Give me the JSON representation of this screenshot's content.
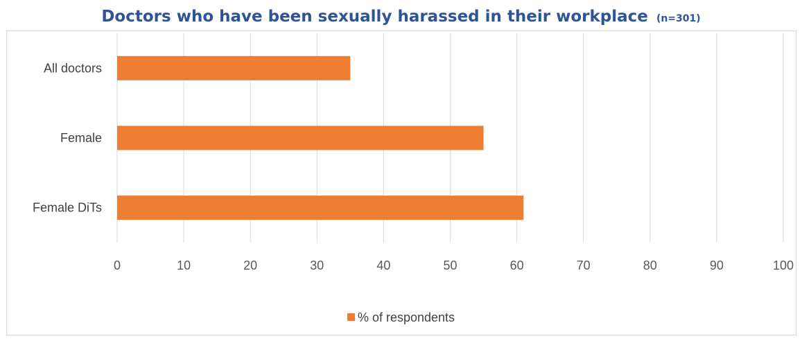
{
  "chart_data": {
    "type": "bar",
    "orientation": "horizontal",
    "title": "Doctors who have been sexually harassed in their workplace",
    "subtitle": "(n=301)",
    "categories": [
      "All doctors",
      "Female",
      "Female DiTs"
    ],
    "series": [
      {
        "name": "% of respondents",
        "values": [
          35,
          55,
          61
        ],
        "color": "#ed7d31"
      }
    ],
    "xlim": [
      0,
      100
    ],
    "xticks": [
      0,
      10,
      20,
      30,
      40,
      50,
      60,
      70,
      80,
      90,
      100
    ],
    "grid": true,
    "legend": "bottom",
    "title_color": "#2f5496"
  }
}
